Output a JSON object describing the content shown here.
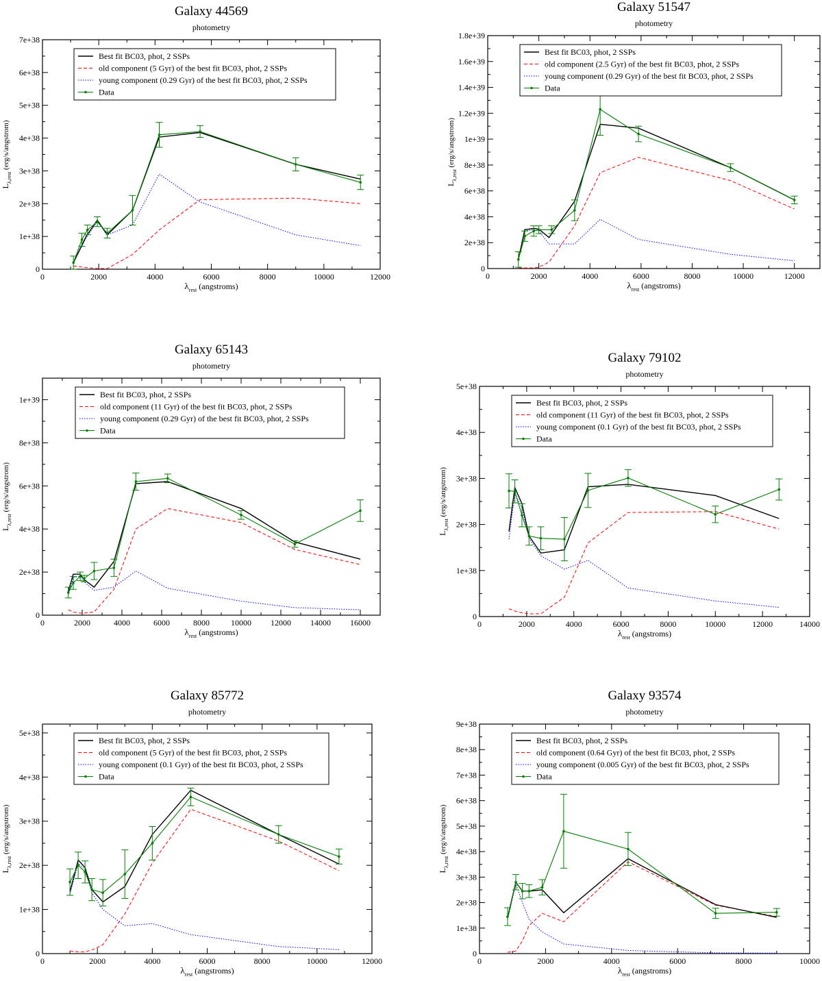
{
  "chart_data": [
    {
      "type": "line",
      "title": "Galaxy 44569",
      "subtitle": "photometry",
      "xlabel_main": "λ",
      "xlabel_sub": "rest",
      "xlabel_rest": " (angstroms)",
      "ylabel_main": "L",
      "ylabel_sub": "λ,rest",
      "ylabel_rest": " (erg/s/angstrom)",
      "xlim": [
        0,
        12000
      ],
      "ylim": [
        0,
        7e+38
      ],
      "xticks": [
        0,
        2000,
        4000,
        6000,
        8000,
        10000,
        12000
      ],
      "xtick_labels": [
        "0",
        "2000",
        "4000",
        "6000",
        "8000",
        "10000",
        "12000"
      ],
      "yticks": [
        0,
        1e+38,
        2e+38,
        3e+38,
        4e+38,
        5e+38,
        6e+38,
        7e+38
      ],
      "ytick_labels": [
        "0",
        "1e+38",
        "2e+38",
        "3e+38",
        "4e+38",
        "5e+38",
        "6e+38",
        "7e+38"
      ],
      "legend": [
        "Best fit BC03, phot, 2 SSPs",
        "old component (5 Gyr) of the best fit BC03, phot, 2 SSPs",
        "young component (0.29 Gyr) of the best fit BC03, phot, 2 SSPs",
        "Data"
      ],
      "best_fit": {
        "x": [
          1100,
          1550,
          1950,
          2300,
          3200,
          4150,
          5600,
          9000,
          11300
        ],
        "y": [
          2e+37,
          1e+38,
          1.5e+38,
          1.05e+38,
          1.8e+38,
          4.03e+38,
          4.17e+38,
          3.2e+38,
          2.75e+38
        ]
      },
      "old": {
        "x": [
          1100,
          1550,
          1950,
          2300,
          3200,
          4150,
          5600,
          9000,
          11300
        ],
        "y": [
          1e+37,
          5e+36,
          2e+36,
          2e+36,
          4.5e+37,
          1.2e+38,
          2.12e+38,
          2.17e+38,
          2e+38
        ]
      },
      "young": {
        "x": [
          1100,
          1550,
          1950,
          2300,
          3200,
          4150,
          5600,
          9000,
          11300
        ],
        "y": [
          2e+37,
          9.5e+37,
          1.45e+38,
          1.05e+38,
          1.35e+38,
          2.9e+38,
          2.05e+38,
          1.05e+38,
          7.2e+37
        ]
      },
      "data_pts": {
        "x": [
          1100,
          1400,
          1600,
          1950,
          2300,
          3200,
          4150,
          5600,
          9000,
          11300
        ],
        "y": [
          2e+37,
          9e+37,
          1.2e+38,
          1.45e+38,
          1.1e+38,
          1.8e+38,
          4.1e+38,
          4.2e+38,
          3.2e+38,
          2.65e+38
        ],
        "err": [
          2e+37,
          2e+37,
          1.5e+37,
          1.5e+37,
          1.5e+37,
          4.5e+37,
          3.8e+37,
          1.8e+37,
          2e+37,
          2.2e+37
        ]
      }
    },
    {
      "type": "line",
      "title": "Galaxy 51547",
      "subtitle": "photometry",
      "xlabel_main": "λ",
      "xlabel_sub": "rest",
      "xlabel_rest": " (angstroms)",
      "ylabel_main": "L",
      "ylabel_sub": "λ,rest",
      "ylabel_rest": " (erg/s/angstrom)",
      "xlim": [
        0,
        13000
      ],
      "ylim": [
        0,
        1.8e+39
      ],
      "xticks": [
        0,
        2000,
        4000,
        6000,
        8000,
        10000,
        12000
      ],
      "xtick_labels": [
        "0",
        "2000",
        "4000",
        "6000",
        "8000",
        "10000",
        "12000"
      ],
      "yticks": [
        0,
        2e+38,
        4e+38,
        6e+38,
        8e+38,
        1e+39,
        1.2e+39,
        1.4e+39,
        1.6e+39,
        1.8e+39
      ],
      "ytick_labels": [
        "0",
        "2e+38",
        "4e+38",
        "6e+38",
        "8e+38",
        "1e+39",
        "1.2e+39",
        "1.4e+39",
        "1.6e+39",
        "1.8e+39"
      ],
      "legend": [
        "Best fit BC03, phot, 2 SSPs",
        "old component (2.5 Gyr) of the best fit BC03, phot, 2 SSPs",
        "young component (0.29 Gyr) of the best fit BC03, phot, 2 SSPs",
        "Data"
      ],
      "best_fit": {
        "x": [
          1200,
          1450,
          1800,
          2000,
          2400,
          3400,
          4400,
          5900,
          9500,
          12000
        ],
        "y": [
          7e+37,
          3e+38,
          3.1e+38,
          3.05e+38,
          2.4e+38,
          5.2e+38,
          1.115e+39,
          1.085e+39,
          7.8e+38,
          5.3e+38
        ]
      },
      "old": {
        "x": [
          1200,
          1450,
          1800,
          2000,
          2400,
          3400,
          4400,
          5900,
          9500,
          12000
        ],
        "y": [
          5e+36,
          5e+36,
          5e+36,
          1e+37,
          5e+37,
          3.3e+38,
          7.4e+38,
          8.6e+38,
          6.8e+38,
          4.6e+38
        ]
      },
      "young": {
        "x": [
          1200,
          1450,
          1800,
          2000,
          2400,
          3400,
          4400,
          5900,
          9500,
          12000
        ],
        "y": [
          7e+37,
          2.9e+38,
          3e+38,
          2.9e+38,
          1.9e+38,
          1.9e+38,
          3.8e+38,
          2.25e+38,
          1.1e+38,
          6e+37
        ]
      },
      "data_pts": {
        "x": [
          1200,
          1450,
          1800,
          2000,
          2500,
          3400,
          4400,
          5900,
          9500,
          12000
        ],
        "y": [
          7e+37,
          2.5e+38,
          2.9e+38,
          3e+38,
          3e+38,
          4.5e+38,
          1.23e+39,
          1.04e+39,
          7.8e+38,
          5.3e+38
        ],
        "err": [
          6e+37,
          4e+37,
          4e+37,
          3e+37,
          3e+37,
          8e+37,
          2e+38,
          6e+37,
          3e+37,
          3e+37
        ]
      }
    },
    {
      "type": "line",
      "title": "Galaxy 65143",
      "subtitle": "photometry",
      "xlabel_main": "λ",
      "xlabel_sub": "rest",
      "xlabel_rest": " (angstroms)",
      "ylabel_main": "L",
      "ylabel_sub": "λ,rest",
      "ylabel_rest": " (erg/s/angstrom)",
      "xlim": [
        0,
        17000
      ],
      "ylim": [
        0,
        1.1e+39
      ],
      "xticks": [
        0,
        2000,
        4000,
        6000,
        8000,
        10000,
        12000,
        14000,
        16000
      ],
      "xtick_labels": [
        "0",
        "2000",
        "4000",
        "6000",
        "8000",
        "10000",
        "12000",
        "14000",
        "16000"
      ],
      "yticks": [
        0,
        2e+38,
        4e+38,
        6e+38,
        8e+38,
        1e+39
      ],
      "ytick_labels": [
        "0",
        "2e+38",
        "4e+38",
        "6e+38",
        "8e+38",
        "1e+39"
      ],
      "legend": [
        "Best fit BC03, phot, 2 SSPs",
        "old component (11 Gyr) of the best fit BC03, phot, 2 SSPs",
        "young component (0.29 Gyr) of the best fit BC03, phot, 2 SSPs",
        "Data"
      ],
      "best_fit": {
        "x": [
          1300,
          1550,
          1900,
          2100,
          2600,
          3600,
          4700,
          6300,
          10000,
          12700,
          16000
        ],
        "y": [
          1.1e+38,
          1.9e+38,
          1.9e+38,
          1.65e+38,
          1.3e+38,
          2.5e+38,
          6.1e+38,
          6.2e+38,
          4.95e+38,
          3.4e+38,
          2.6e+38
        ]
      },
      "old": {
        "x": [
          1300,
          1550,
          1900,
          2100,
          2600,
          3600,
          4700,
          6300,
          10000,
          12700,
          16000
        ],
        "y": [
          2.5e+37,
          1.5e+37,
          1e+37,
          1e+37,
          1.5e+37,
          1.2e+38,
          4e+38,
          4.95e+38,
          4.3e+38,
          3.05e+38,
          2.35e+38
        ]
      },
      "young": {
        "x": [
          1300,
          1550,
          1900,
          2100,
          2600,
          3600,
          4700,
          6300,
          10000,
          12700,
          16000
        ],
        "y": [
          9e+37,
          1.75e+38,
          1.8e+38,
          1.55e+38,
          1.15e+38,
          1.3e+38,
          2.05e+38,
          1.25e+38,
          6.5e+37,
          3.5e+37,
          2.5e+37
        ]
      },
      "data_pts": {
        "x": [
          1300,
          1550,
          1900,
          2100,
          2600,
          3600,
          4700,
          6300,
          10000,
          12700,
          16000
        ],
        "y": [
          1.05e+38,
          1.5e+38,
          1.8e+38,
          1.7e+38,
          2.05e+38,
          2.2e+38,
          6.2e+38,
          6.35e+38,
          4.65e+38,
          3.3e+38,
          4.85e+38
        ],
        "err": [
          2.5e+37,
          3e+37,
          2e+37,
          1.5e+37,
          4e+37,
          4e+37,
          4e+37,
          2e+37,
          2e+37,
          1.5e+37,
          5e+37
        ]
      }
    },
    {
      "type": "line",
      "title": "Galaxy 79102",
      "subtitle": "photometry",
      "xlabel_main": "λ",
      "xlabel_sub": "rest",
      "xlabel_rest": " (angstroms)",
      "ylabel_main": "L",
      "ylabel_sub": "λ,rest",
      "ylabel_rest": " (erg/s/angstrom)",
      "xlim": [
        0,
        14000
      ],
      "ylim": [
        0,
        5e+38
      ],
      "xticks": [
        0,
        2000,
        4000,
        6000,
        8000,
        10000,
        12000,
        14000
      ],
      "xtick_labels": [
        "0",
        "2000",
        "4000",
        "6000",
        "8000",
        "10000",
        "12000",
        "14000"
      ],
      "yticks": [
        0,
        1e+38,
        2e+38,
        3e+38,
        4e+38,
        5e+38
      ],
      "ytick_labels": [
        "0",
        "1e+38",
        "2e+38",
        "3e+38",
        "4e+38",
        "5e+38"
      ],
      "legend": [
        "Best fit BC03, phot, 2 SSPs",
        "old component (11 Gyr) of the best fit BC03, phot, 2 SSPs",
        "young component (0.1 Gyr) of the best fit BC03, phot, 2 SSPs",
        "Data"
      ],
      "best_fit": {
        "x": [
          1250,
          1500,
          1800,
          2100,
          2600,
          3600,
          4600,
          6300,
          10000,
          12700
        ],
        "y": [
          1.85e+38,
          2.8e+38,
          2.45e+38,
          1.75e+38,
          1.38e+38,
          1.45e+38,
          2.82e+38,
          2.87e+38,
          2.63e+38,
          2.13e+38
        ]
      },
      "old": {
        "x": [
          1250,
          1500,
          1800,
          2100,
          2600,
          3600,
          4600,
          6300,
          10000,
          12700
        ],
        "y": [
          1.7e+37,
          1.2e+37,
          8e+36,
          6e+36,
          6e+36,
          4.2e+37,
          1.6e+38,
          2.26e+38,
          2.28e+38,
          1.9e+38
        ]
      },
      "young": {
        "x": [
          1250,
          1500,
          1800,
          2100,
          2600,
          3600,
          4600,
          6300,
          10000,
          12700
        ],
        "y": [
          1.68e+38,
          2.68e+38,
          2.35e+38,
          1.7e+38,
          1.32e+38,
          1.03e+38,
          1.22e+38,
          6.2e+37,
          3.4e+37,
          2e+37
        ]
      },
      "data_pts": {
        "x": [
          1250,
          1500,
          1800,
          2100,
          2600,
          3600,
          4600,
          6300,
          10000,
          12700
        ],
        "y": [
          2.73e+38,
          2.72e+38,
          2.2e+38,
          1.75e+38,
          1.7e+38,
          1.68e+38,
          2.74e+38,
          3.01e+38,
          2.22e+38,
          2.76e+38
        ],
        "err": [
          3.7e+37,
          2.5e+37,
          2.5e+37,
          2e+37,
          2.5e+37,
          4.7e+37,
          3.7e+37,
          1.8e+37,
          1.8e+37,
          2.3e+37
        ]
      }
    },
    {
      "type": "line",
      "title": "Galaxy 85772",
      "subtitle": "photometry",
      "xlabel_main": "λ",
      "xlabel_sub": "rest",
      "xlabel_rest": " (angstroms)",
      "ylabel_main": "L",
      "ylabel_sub": "λ,rest",
      "ylabel_rest": " (erg/s/angstrom)",
      "xlim": [
        0,
        12000
      ],
      "ylim": [
        0,
        5.2e+38
      ],
      "xticks": [
        0,
        2000,
        4000,
        6000,
        8000,
        10000,
        12000
      ],
      "xtick_labels": [
        "0",
        "2000",
        "4000",
        "6000",
        "8000",
        "10000",
        "12000"
      ],
      "yticks": [
        0,
        1e+38,
        2e+38,
        3e+38,
        4e+38,
        5e+38
      ],
      "ytick_labels": [
        "0",
        "1e+38",
        "2e+38",
        "3e+38",
        "4e+38",
        "5e+38"
      ],
      "legend": [
        "Best fit BC03, phot, 2 SSPs",
        "old component (5 Gyr) of the best fit BC03, phot, 2 SSPs",
        "young component (0.1 Gyr) of the best fit BC03, phot, 2 SSPs",
        "Data"
      ],
      "best_fit": {
        "x": [
          1000,
          1300,
          1550,
          1800,
          2200,
          3000,
          4000,
          5400,
          8600,
          10800
        ],
        "y": [
          1.4e+38,
          2.12e+38,
          1.95e+38,
          1.45e+38,
          1.17e+38,
          1.52e+38,
          2.7e+38,
          3.7e+38,
          2.7e+38,
          2.03e+38
        ]
      },
      "old": {
        "x": [
          1000,
          1300,
          1550,
          1800,
          2200,
          3000,
          4000,
          5400,
          8600,
          10800
        ],
        "y": [
          6e+36,
          4e+36,
          4e+36,
          8e+36,
          2e+37,
          9e+37,
          2.05e+38,
          3.27e+38,
          2.55e+38,
          1.88e+38
        ]
      },
      "young": {
        "x": [
          1000,
          1300,
          1550,
          1800,
          2200,
          3000,
          4000,
          5400,
          8600,
          10800
        ],
        "y": [
          1.35e+38,
          2.05e+38,
          1.9e+38,
          1.38e+38,
          1e+38,
          6.3e+37,
          6.8e+37,
          4.3e+37,
          1.6e+37,
          9e+36
        ]
      },
      "data_pts": {
        "x": [
          1000,
          1300,
          1550,
          1800,
          2200,
          3000,
          4000,
          5400,
          8600,
          10800
        ],
        "y": [
          1.62e+38,
          2e+38,
          1.85e+38,
          1.45e+38,
          1.38e+38,
          1.8e+38,
          2.5e+38,
          3.55e+38,
          2.7e+38,
          2.2e+38
        ],
        "err": [
          3e+37,
          3e+37,
          2.5e+37,
          2.5e+37,
          3e+37,
          5.5e+37,
          3.8e+37,
          2e+37,
          2e+37,
          1.7e+37
        ]
      }
    },
    {
      "type": "line",
      "title": "Galaxy 93574",
      "subtitle": "photometry",
      "xlabel_main": "λ",
      "xlabel_sub": "rest",
      "xlabel_rest": " (angstroms)",
      "ylabel_main": "L",
      "ylabel_sub": "λ,rest",
      "ylabel_rest": " (erg/s/angstrom)",
      "xlim": [
        0,
        10000
      ],
      "ylim": [
        0,
        9e+38
      ],
      "xticks": [
        0,
        2000,
        4000,
        6000,
        8000,
        10000
      ],
      "xtick_labels": [
        "0",
        "2000",
        "4000",
        "6000",
        "8000",
        "10000"
      ],
      "yticks": [
        0,
        1e+38,
        2e+38,
        3e+38,
        4e+38,
        5e+38,
        6e+38,
        7e+38,
        8e+38,
        9e+38
      ],
      "ytick_labels": [
        "0",
        "1e+38",
        "2e+38",
        "3e+38",
        "4e+38",
        "5e+38",
        "6e+38",
        "7e+38",
        "8e+38",
        "9e+38"
      ],
      "legend": [
        "Best fit BC03, phot, 2 SSPs",
        "old component (0.64 Gyr) of the best fit BC03, phot, 2 SSPs",
        "young component (0.005 Gyr) of the best fit BC03, phot, 2 SSPs",
        "Data"
      ],
      "best_fit": {
        "x": [
          850,
          1100,
          1300,
          1500,
          1900,
          2550,
          4500,
          7150,
          9000
        ],
        "y": [
          1.4e+38,
          2.8e+38,
          2.45e+38,
          2.45e+38,
          2.5e+38,
          1.6e+38,
          3.72e+38,
          1.92e+38,
          1.42e+38
        ]
      },
      "old": {
        "x": [
          850,
          1100,
          1300,
          1500,
          1900,
          2550,
          4500,
          7150,
          9000
        ],
        "y": [
          5e+36,
          1e+37,
          5e+37,
          1.1e+38,
          1.58e+38,
          1.25e+38,
          3.6e+38,
          1.9e+38,
          1.45e+38
        ]
      },
      "young": {
        "x": [
          850,
          1100,
          1300,
          1500,
          1900,
          2550,
          4500,
          7150,
          9000
        ],
        "y": [
          1.35e+38,
          2.75e+38,
          2e+38,
          1.35e+38,
          8.5e+37,
          3.8e+37,
          1.2e+37,
          3e+36,
          2e+36
        ]
      },
      "data_pts": {
        "x": [
          850,
          1100,
          1300,
          1500,
          1900,
          2550,
          4500,
          7150,
          9000
        ],
        "y": [
          1.45e+38,
          2.8e+38,
          2.45e+38,
          2.45e+38,
          2.6e+38,
          4.8e+38,
          4.1e+38,
          1.58e+38,
          1.62e+38
        ],
        "err": [
          3.5e+37,
          3e+37,
          3e+37,
          2.5e+37,
          3e+37,
          1.45e+38,
          6.5e+37,
          2e+37,
          1.5e+37
        ]
      }
    }
  ]
}
